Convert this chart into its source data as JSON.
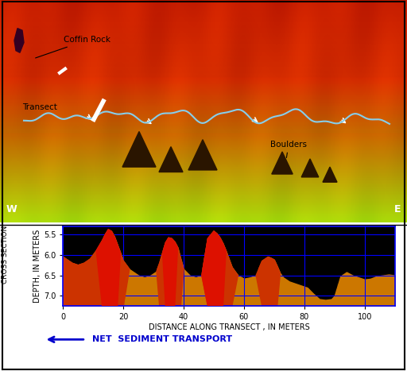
{
  "cross_section": {
    "xlim": [
      0,
      110
    ],
    "ylim": [
      7.25,
      5.3
    ],
    "xticks": [
      0,
      20,
      40,
      60,
      80,
      100
    ],
    "yticks": [
      5.5,
      6.0,
      6.5,
      7.0
    ],
    "xlabel": "DISTANCE ALONG TRANSECT , IN METERS",
    "ylabel_top": "CROSS SECTION",
    "ylabel_bot": "DEPTH, IN METERS",
    "background_color": "#000000",
    "grid_color": "#0000ff",
    "arrow_label": "NET  SEDIMENT TRANSPORT",
    "arrow_color": "#0000cd"
  },
  "profile_x": [
    0,
    1,
    3,
    5,
    7,
    9,
    11,
    13,
    14,
    15,
    16,
    17,
    18,
    19,
    20,
    22,
    25,
    27,
    29,
    31,
    32,
    33,
    34,
    35,
    36,
    37,
    38,
    39,
    40,
    42,
    44,
    46,
    48,
    50,
    51,
    52,
    53,
    54,
    55,
    56,
    58,
    60,
    62,
    64,
    66,
    68,
    69,
    70,
    71,
    72,
    73,
    74,
    75,
    77,
    79,
    81,
    83,
    85,
    87,
    89,
    90,
    92,
    94,
    96,
    98,
    100,
    102,
    104,
    106,
    108,
    110
  ],
  "profile_y": [
    6.05,
    6.1,
    6.2,
    6.25,
    6.2,
    6.1,
    5.9,
    5.65,
    5.5,
    5.38,
    5.42,
    5.55,
    5.75,
    5.95,
    6.15,
    6.35,
    6.5,
    6.55,
    6.5,
    6.4,
    6.2,
    5.95,
    5.7,
    5.58,
    5.6,
    5.68,
    5.82,
    6.1,
    6.35,
    6.5,
    6.55,
    6.5,
    5.6,
    5.42,
    5.48,
    5.58,
    5.72,
    5.9,
    6.1,
    6.3,
    6.5,
    6.58,
    6.55,
    6.5,
    6.15,
    6.05,
    6.08,
    6.12,
    6.28,
    6.45,
    6.55,
    6.6,
    6.65,
    6.7,
    6.75,
    6.8,
    6.95,
    7.08,
    7.1,
    7.08,
    7.0,
    6.52,
    6.42,
    6.5,
    6.55,
    6.6,
    6.58,
    6.52,
    6.5,
    6.48,
    6.5
  ],
  "ymax_fill": 7.25,
  "top_labels": {
    "coffin_rock": "Coffin Rock",
    "transect": "Transect",
    "boulders": "Boulders",
    "W": "W",
    "E": "E"
  },
  "figure_bg": "#ffffff"
}
